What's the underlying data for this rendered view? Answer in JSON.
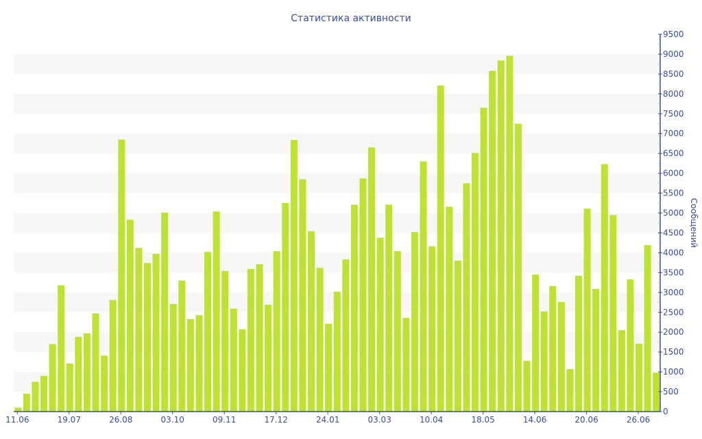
{
  "chart_data": {
    "type": "bar",
    "title": "Статистика активности",
    "xlabel": "",
    "ylabel": "Сообщений",
    "ylim": [
      0,
      9500
    ],
    "yticks": [
      0,
      500,
      1000,
      1500,
      2000,
      2500,
      3000,
      3500,
      4000,
      4500,
      5000,
      5500,
      6000,
      6500,
      7000,
      7500,
      8000,
      8500,
      9000,
      9500
    ],
    "y_axis_position": "right",
    "grid": "alternating horizontal bands",
    "x_tick_labels": [
      {
        "index": 0,
        "label": "11.06"
      },
      {
        "index": 6,
        "label": "19.07"
      },
      {
        "index": 12,
        "label": "26.08"
      },
      {
        "index": 18,
        "label": "03.10"
      },
      {
        "index": 24,
        "label": "09.11"
      },
      {
        "index": 30,
        "label": "17.12"
      },
      {
        "index": 36,
        "label": "24.01"
      },
      {
        "index": 42,
        "label": "03.03"
      },
      {
        "index": 48,
        "label": "10.04"
      },
      {
        "index": 54,
        "label": "18.05"
      },
      {
        "index": 60,
        "label": "14.06"
      },
      {
        "index": 66,
        "label": "20.06"
      },
      {
        "index": 72,
        "label": "26.06"
      }
    ],
    "series": [
      {
        "name": "Сообщений",
        "color": "#bde232",
        "values": [
          100,
          450,
          750,
          900,
          1700,
          3180,
          1210,
          1880,
          1970,
          2470,
          1410,
          2810,
          6850,
          4830,
          4120,
          3740,
          3970,
          5010,
          2710,
          3300,
          2330,
          2430,
          4020,
          5040,
          3540,
          2590,
          2070,
          3590,
          3710,
          2690,
          4040,
          5250,
          6840,
          5850,
          4540,
          3620,
          2210,
          3020,
          3830,
          5210,
          5870,
          6650,
          4380,
          5210,
          4040,
          2360,
          4520,
          6300,
          4160,
          8210,
          5160,
          3800,
          5750,
          6510,
          7650,
          8580,
          8840,
          8960,
          7250,
          1280,
          3450,
          2520,
          3160,
          2760,
          1070,
          3420,
          5110,
          3090,
          6230,
          4950,
          2050,
          3330,
          1710,
          4190,
          980
        ]
      }
    ]
  }
}
